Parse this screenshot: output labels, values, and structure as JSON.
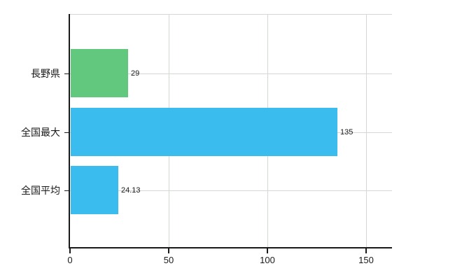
{
  "chart_data": {
    "type": "bar",
    "orientation": "horizontal",
    "title": "",
    "xlabel": "",
    "ylabel": "",
    "categories": [
      "長野県",
      "全国最大",
      "全国平均"
    ],
    "values": [
      29,
      135,
      24.13
    ],
    "value_labels": [
      "29",
      "135",
      "24.13"
    ],
    "bar_colors": [
      "#61c87e",
      "#3abcee",
      "#3abcee"
    ],
    "x_ticks": [
      0,
      50,
      100,
      150
    ],
    "x_tick_labels": [
      "0",
      "50",
      "100",
      "150"
    ],
    "xlim": [
      0,
      163
    ],
    "grid": true,
    "legend": "none"
  },
  "colors": {
    "background": "#ffffff",
    "grid": "#d3d8d3",
    "axis": "#1a1a1a",
    "text": "#1a1a1a",
    "value_text": "#1a1a1a"
  }
}
